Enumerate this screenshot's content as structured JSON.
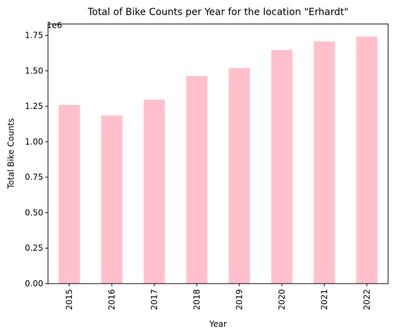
{
  "chart_data": {
    "type": "bar",
    "title": "Total of Bike Counts per Year for the location \"Erhardt\"",
    "xlabel": "Year",
    "ylabel": "Total Bike Counts",
    "offset_label": "1e6",
    "categories": [
      "2015",
      "2016",
      "2017",
      "2018",
      "2019",
      "2020",
      "2021",
      "2022"
    ],
    "values": [
      1260000,
      1185000,
      1297000,
      1463000,
      1519000,
      1647000,
      1706000,
      1741000
    ],
    "ylim": [
      0,
      1830000
    ],
    "yticks": [
      0,
      250000,
      500000,
      750000,
      1000000,
      1250000,
      1500000,
      1750000
    ],
    "ytick_labels": [
      "0.00",
      "0.25",
      "0.50",
      "0.75",
      "1.00",
      "1.25",
      "1.50",
      "1.75"
    ],
    "bar_color": "#ffc0cb",
    "grid": false,
    "legend": "none"
  }
}
